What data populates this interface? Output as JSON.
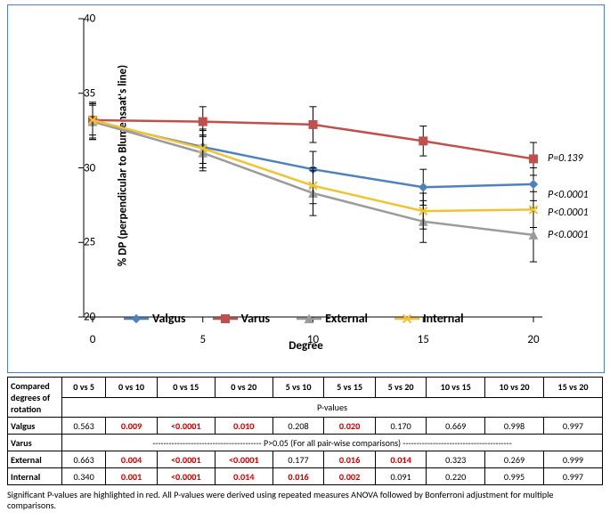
{
  "chart": {
    "type": "line",
    "xlabel": "Degree",
    "ylabel": "% DP (perpendicular to Blumensaat's line)",
    "x_categories": [
      "0",
      "5",
      "10",
      "15",
      "20"
    ],
    "ylim": [
      20,
      40
    ],
    "ytick_step": 5,
    "yticks": [
      20,
      25,
      30,
      35,
      40
    ],
    "background_color": "#ffffff",
    "border_color": "#4f81bd",
    "series": [
      {
        "name": "Valgus",
        "color": "#4f81bd",
        "marker": "diamond",
        "values": [
          33.1,
          31.4,
          29.9,
          28.7,
          28.9
        ],
        "err": [
          1.2,
          1.1,
          1.2,
          1.2,
          1.1
        ],
        "p": "P<0.0001",
        "p_y": 28.2
      },
      {
        "name": "Varus",
        "color": "#c0504d",
        "marker": "square",
        "values": [
          33.2,
          33.1,
          32.9,
          31.8,
          30.6
        ],
        "err": [
          1.0,
          1.0,
          1.2,
          1.0,
          1.1
        ],
        "p": "P=0.139",
        "p_y": 30.6
      },
      {
        "name": "External",
        "color": "#9b9b9b",
        "marker": "triangle",
        "values": [
          33.1,
          31.0,
          28.3,
          26.4,
          25.5
        ],
        "err": [
          1.2,
          1.2,
          1.5,
          1.4,
          1.8
        ],
        "p": "P<0.0001",
        "p_y": 25.5
      },
      {
        "name": "Internal",
        "color": "#f1c232",
        "marker": "x",
        "values": [
          33.2,
          31.3,
          28.8,
          27.1,
          27.2
        ],
        "err": [
          1.2,
          1.3,
          1.2,
          1.2,
          1.2
        ],
        "p": "P<0.0001",
        "p_y": 27.0
      }
    ],
    "legend_order": [
      0,
      1,
      2,
      3
    ],
    "p_annotation_order": [
      1,
      0,
      3,
      2
    ],
    "marker_size": 9,
    "line_width": 2.5
  },
  "table": {
    "header_label": "Compared degrees of rotation",
    "pvalues_label": "P-values",
    "columns": [
      "0 vs 5",
      "0 vs 10",
      "0 vs 15",
      "0 vs 20",
      "5 vs 10",
      "5 vs 15",
      "5 vs 20",
      "10 vs 15",
      "10 vs 20",
      "15 vs 20"
    ],
    "rows": [
      {
        "label": "Valgus",
        "cells": [
          {
            "v": "0.563",
            "sig": false
          },
          {
            "v": "0.009",
            "sig": true
          },
          {
            "v": "<0.0001",
            "sig": true
          },
          {
            "v": "0.010",
            "sig": true
          },
          {
            "v": "0.208",
            "sig": false
          },
          {
            "v": "0.020",
            "sig": true
          },
          {
            "v": "0.170",
            "sig": false
          },
          {
            "v": "0.669",
            "sig": false
          },
          {
            "v": "0.998",
            "sig": false
          },
          {
            "v": "0.997",
            "sig": false
          }
        ]
      },
      {
        "label": "Varus",
        "note": "----------------------------------------  P>0.05 (For all pair-wise comparisons)  ----------------------------------------"
      },
      {
        "label": "External",
        "cells": [
          {
            "v": "0.663",
            "sig": false
          },
          {
            "v": "0.004",
            "sig": true
          },
          {
            "v": "<0.0001",
            "sig": true
          },
          {
            "v": "<0.0001",
            "sig": true
          },
          {
            "v": "0.177",
            "sig": false
          },
          {
            "v": "0.016",
            "sig": true
          },
          {
            "v": "0.014",
            "sig": true
          },
          {
            "v": "0.323",
            "sig": false
          },
          {
            "v": "0.269",
            "sig": false
          },
          {
            "v": "0.999",
            "sig": false
          }
        ]
      },
      {
        "label": "Internal",
        "cells": [
          {
            "v": "0.340",
            "sig": false
          },
          {
            "v": "0.001",
            "sig": true
          },
          {
            "v": "<0.0001",
            "sig": true
          },
          {
            "v": "0.014",
            "sig": true
          },
          {
            "v": "0.016",
            "sig": true
          },
          {
            "v": "0.002",
            "sig": true
          },
          {
            "v": "0.091",
            "sig": false
          },
          {
            "v": "0.220",
            "sig": false
          },
          {
            "v": "0.995",
            "sig": false
          },
          {
            "v": "0.997",
            "sig": false
          }
        ]
      }
    ]
  },
  "footnote": "Significant P-values are highlighted in red.  All P-values were derived using repeated measures ANOVA followed by Bonferroni adjustment for multiple comparisons."
}
